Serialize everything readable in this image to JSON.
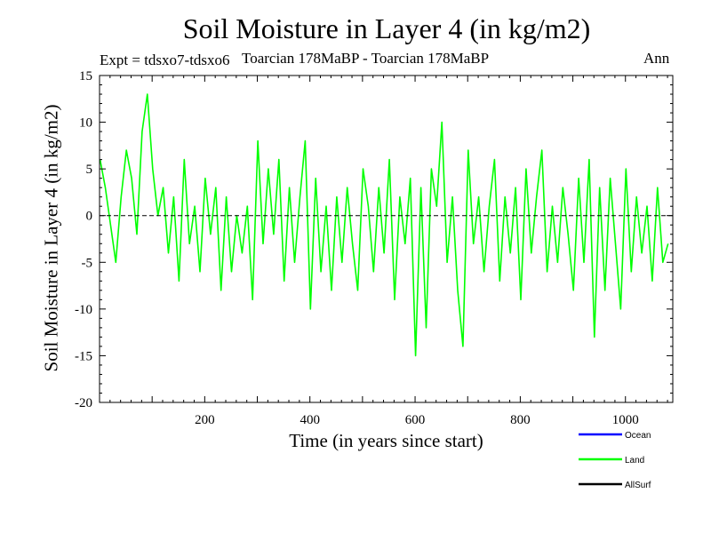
{
  "chart_data": {
    "type": "line",
    "title": "Soil Moisture in Layer 4 (in kg/m2)",
    "experiment": "Expt = tdsxo7-tdsxo6",
    "period": "Toarcian 178MaBP - Toarcian 178MaBP",
    "season": "Ann",
    "xlabel": "Time (in years since start)",
    "ylabel": "Soil Moisture in Layer 4 (in kg/m2)",
    "xlim": [
      0,
      1090
    ],
    "ylim": [
      -20,
      15
    ],
    "xticks": [
      200,
      400,
      600,
      800,
      1000
    ],
    "yticks": [
      15,
      10,
      5,
      0,
      -5,
      -10,
      -15,
      -20
    ],
    "reference_line": 0,
    "legend": [
      {
        "name": "Ocean",
        "color": "#0000ff"
      },
      {
        "name": "Land",
        "color": "#00ff00"
      },
      {
        "name": "AllSurf",
        "color": "#000000"
      }
    ],
    "series": [
      {
        "name": "Land",
        "color": "#00ff00",
        "x_start": 1,
        "x_step": 10,
        "values": [
          6,
          3,
          -1,
          -5,
          2,
          7,
          4,
          -2,
          9,
          13,
          5,
          0,
          3,
          -4,
          2,
          -7,
          6,
          -3,
          1,
          -6,
          4,
          -2,
          3,
          -8,
          2,
          -6,
          0,
          -4,
          1,
          -9,
          8,
          -3,
          5,
          -2,
          6,
          -7,
          3,
          -5,
          2,
          8,
          -10,
          4,
          -6,
          1,
          -8,
          2,
          -5,
          3,
          -3,
          -8,
          5,
          1,
          -6,
          3,
          -4,
          6,
          -9,
          2,
          -3,
          4,
          -15,
          3,
          -12,
          5,
          1,
          10,
          -5,
          2,
          -8,
          -14,
          7,
          -3,
          2,
          -6,
          1,
          6,
          -7,
          2,
          -4,
          3,
          -9,
          5,
          -4,
          2,
          7,
          -6,
          1,
          -5,
          3,
          -2,
          -8,
          4,
          -5,
          6,
          -13,
          3,
          -8,
          4,
          -3,
          -10,
          5,
          -6,
          2,
          -4,
          1,
          -7,
          3,
          -5,
          -3
        ]
      }
    ]
  }
}
